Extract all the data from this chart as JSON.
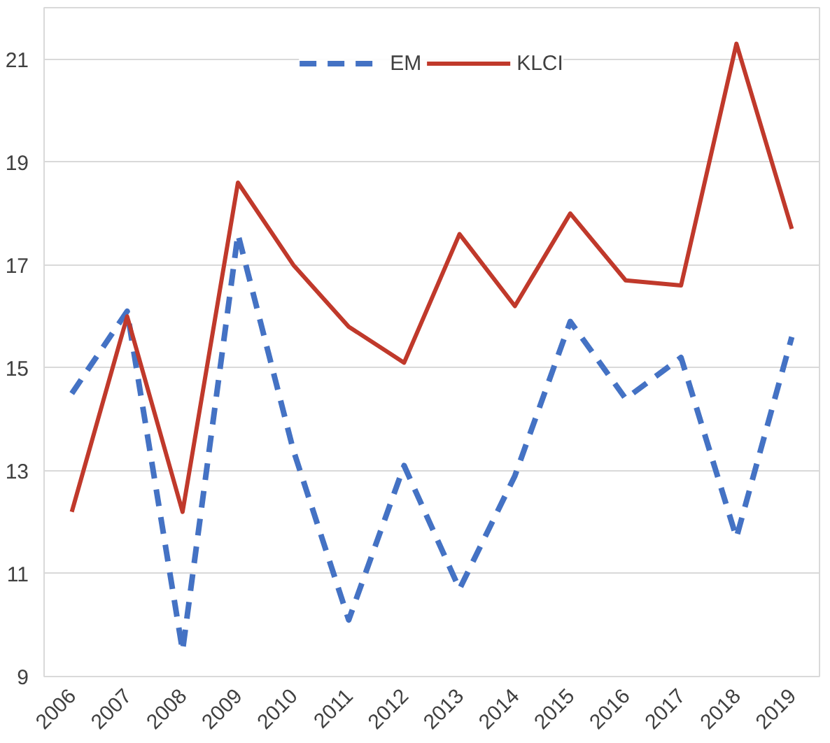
{
  "chart_data": {
    "type": "line",
    "categories": [
      "2006",
      "2007",
      "2008",
      "2009",
      "2010",
      "2011",
      "2012",
      "2013",
      "2014",
      "2015",
      "2016",
      "2017",
      "2018",
      "2019"
    ],
    "series": [
      {
        "name": "EM",
        "color": "#4472c4",
        "line_style": "dashed",
        "values": [
          14.5,
          16.1,
          9.5,
          17.6,
          13.4,
          10.1,
          13.1,
          10.7,
          12.9,
          15.9,
          14.4,
          15.2,
          11.7,
          15.6
        ]
      },
      {
        "name": "KLCI",
        "color": "#c0392b",
        "line_style": "solid",
        "values": [
          12.2,
          16.0,
          12.2,
          18.6,
          17.0,
          15.8,
          15.1,
          17.6,
          16.2,
          18.0,
          16.7,
          16.6,
          21.3,
          17.7
        ]
      }
    ],
    "ylim": [
      9,
      22
    ],
    "yticks": [
      9,
      11,
      13,
      15,
      17,
      19,
      21
    ],
    "grid": "y",
    "legend": "top",
    "marker": "none"
  }
}
